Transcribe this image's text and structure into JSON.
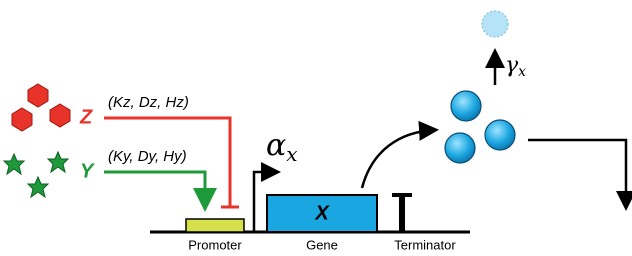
{
  "inputs": {
    "z": {
      "label": "Z",
      "params": "(Kz, Dz, Hz)"
    },
    "y": {
      "label": "Y",
      "params": "(Ky, Dy, Hy)"
    }
  },
  "production_rate": {
    "symbol": "α",
    "subscript": "x"
  },
  "degradation_rate": {
    "symbol": "γ",
    "subscript": "x"
  },
  "gene": {
    "protein": "X",
    "parts": [
      "Promoter",
      "Gene",
      "Terminator"
    ]
  }
}
